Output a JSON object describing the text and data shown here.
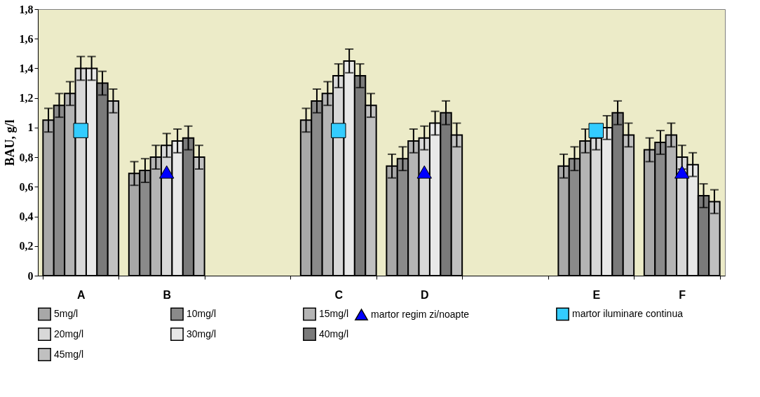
{
  "chart_data": {
    "type": "bar",
    "ylabel": "BAU, g/l",
    "categories": [
      "A",
      "B",
      null,
      "C",
      "D",
      null,
      "E",
      "F"
    ],
    "ylim": [
      0,
      1.8
    ],
    "yticks": [
      0,
      {
        "value": 0.2,
        "label": "0,2"
      },
      {
        "value": 0.4,
        "label": "0,4"
      },
      {
        "value": 0.6,
        "label": "0,6"
      },
      {
        "value": 0.8,
        "label": "0,8"
      },
      1,
      {
        "value": 1.2,
        "label": "1,2"
      },
      {
        "value": 1.4,
        "label": "1,4"
      },
      {
        "value": 1.6,
        "label": "1,6"
      },
      {
        "value": 1.8,
        "label": "1,8"
      }
    ],
    "legend": "bottom",
    "series": [
      {
        "name": "5mg/l",
        "color": "#a8a8a8",
        "values": [
          1.05,
          0.69,
          null,
          1.05,
          0.74,
          null,
          0.74,
          0.85
        ],
        "errors": [
          0.08,
          0.08,
          null,
          0.08,
          0.08,
          null,
          0.08,
          0.08
        ]
      },
      {
        "name": "10mg/l",
        "color": "#8a8a8a",
        "values": [
          1.15,
          0.71,
          null,
          1.18,
          0.79,
          null,
          0.79,
          0.9
        ],
        "errors": [
          0.08,
          0.08,
          null,
          0.08,
          0.08,
          null,
          0.08,
          0.08
        ]
      },
      {
        "name": "15mg/l",
        "color": "#b4b4b4",
        "values": [
          1.23,
          0.8,
          null,
          1.23,
          0.91,
          null,
          0.91,
          0.95
        ],
        "errors": [
          0.08,
          0.08,
          null,
          0.08,
          0.08,
          null,
          0.08,
          0.08
        ]
      },
      {
        "name": "20mg/l",
        "color": "#d8d8d8",
        "values": [
          1.4,
          0.88,
          null,
          1.35,
          0.93,
          null,
          0.93,
          0.8
        ],
        "errors": [
          0.08,
          0.08,
          null,
          0.08,
          0.08,
          null,
          0.08,
          0.08
        ]
      },
      {
        "name": "30mg/l",
        "color": "#e8e8e8",
        "values": [
          1.4,
          0.91,
          null,
          1.45,
          1.03,
          null,
          1.0,
          0.75
        ],
        "errors": [
          0.08,
          0.08,
          null,
          0.08,
          0.08,
          null,
          0.08,
          0.08
        ]
      },
      {
        "name": "40mg/l",
        "color": "#7a7a7a",
        "values": [
          1.3,
          0.93,
          null,
          1.35,
          1.1,
          null,
          1.1,
          0.54
        ],
        "errors": [
          0.08,
          0.08,
          null,
          0.08,
          0.08,
          null,
          0.08,
          0.08
        ]
      },
      {
        "name": "45mg/l",
        "color": "#c0c0c0",
        "values": [
          1.18,
          0.8,
          null,
          1.15,
          0.95,
          null,
          0.95,
          0.5
        ],
        "errors": [
          0.08,
          0.08,
          null,
          0.08,
          0.08,
          null,
          0.08,
          0.08
        ]
      },
      {
        "name": "martor regim zi/noapte",
        "type": "scatter",
        "marker": "triangle",
        "color": "#0000ff",
        "values": [
          null,
          0.7,
          null,
          null,
          0.7,
          null,
          null,
          0.7
        ]
      },
      {
        "name": "martor iluminare continua",
        "type": "scatter",
        "marker": "square",
        "color": "#33ccff",
        "values": [
          0.98,
          null,
          null,
          0.98,
          null,
          null,
          0.98,
          null
        ]
      }
    ]
  }
}
